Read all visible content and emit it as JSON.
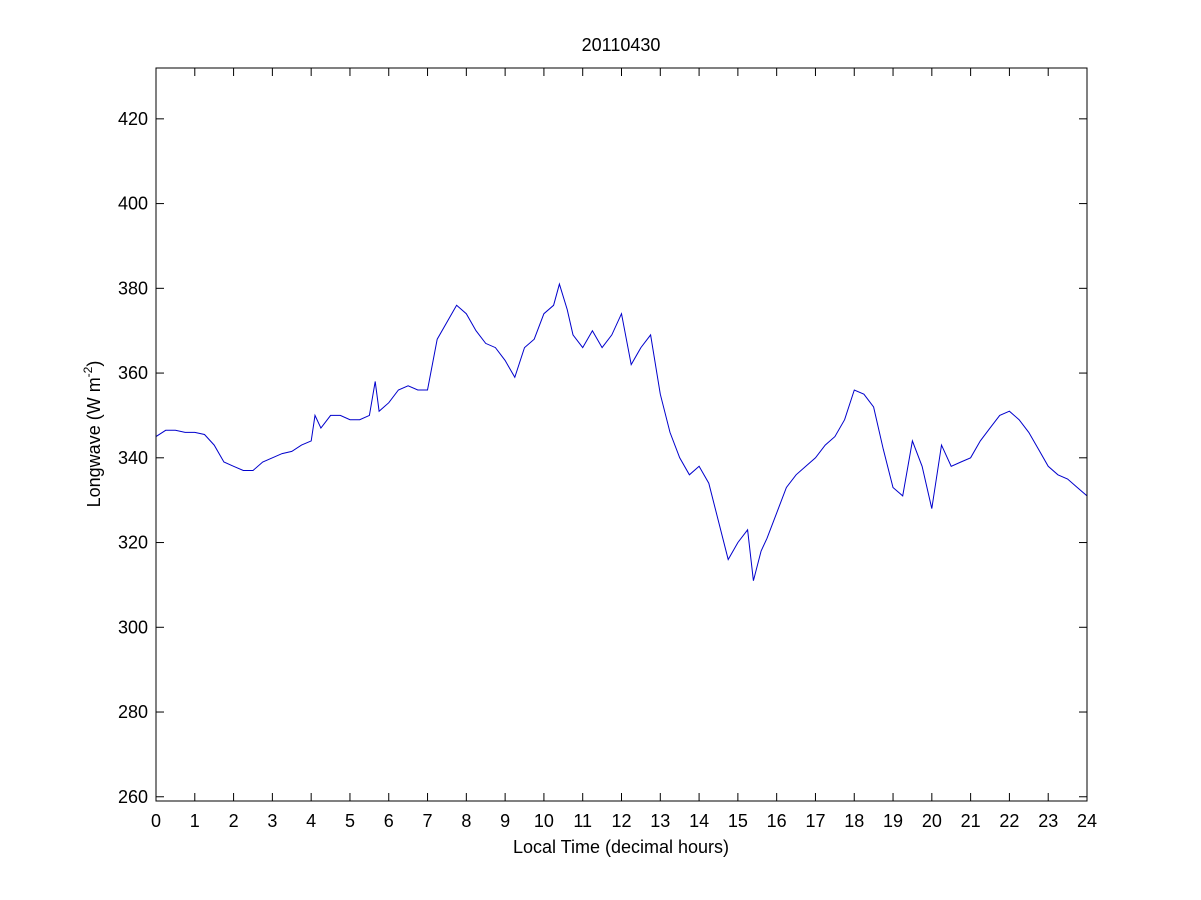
{
  "chart_data": {
    "type": "line",
    "title": "20110430",
    "xlabel": "Local Time (decimal hours)",
    "ylabel": "Longwave (W m",
    "ylabel_superscript": "-2",
    "ylabel_suffix": ")",
    "xlim": [
      0,
      24
    ],
    "ylim": [
      259,
      432
    ],
    "xticks": [
      0,
      1,
      2,
      3,
      4,
      5,
      6,
      7,
      8,
      9,
      10,
      11,
      12,
      13,
      14,
      15,
      16,
      17,
      18,
      19,
      20,
      21,
      22,
      23,
      24
    ],
    "yticks": [
      260,
      280,
      300,
      320,
      340,
      360,
      380,
      400,
      420
    ],
    "grid": false,
    "line_color": "#0000cc",
    "series": [
      {
        "x": [
          0,
          0.25,
          0.5,
          0.75,
          1,
          1.25,
          1.5,
          1.75,
          2,
          2.25,
          2.5,
          2.75,
          3,
          3.25,
          3.5,
          3.75,
          4,
          4.1,
          4.25,
          4.5,
          4.75,
          5,
          5.25,
          5.5,
          5.65,
          5.75,
          6,
          6.25,
          6.5,
          6.75,
          7,
          7.25,
          7.5,
          7.75,
          8,
          8.25,
          8.5,
          8.75,
          9,
          9.25,
          9.5,
          9.75,
          10,
          10.25,
          10.4,
          10.6,
          10.75,
          11,
          11.25,
          11.5,
          11.75,
          12,
          12.25,
          12.5,
          12.75,
          13,
          13.25,
          13.5,
          13.75,
          14,
          14.25,
          14.5,
          14.75,
          15,
          15.25,
          15.4,
          15.6,
          15.75,
          16,
          16.25,
          16.5,
          16.75,
          17,
          17.25,
          17.5,
          17.75,
          18,
          18.25,
          18.5,
          18.75,
          19,
          19.25,
          19.5,
          19.75,
          20,
          20.25,
          20.5,
          20.75,
          21,
          21.25,
          21.5,
          21.75,
          22,
          22.25,
          22.5,
          22.75,
          23,
          23.25,
          23.5,
          23.75,
          24
        ],
        "y": [
          345,
          346.5,
          346.5,
          346,
          346,
          345.5,
          343,
          339,
          338,
          337,
          337,
          339,
          340,
          341,
          341.5,
          343,
          344,
          350,
          347,
          350,
          350,
          349,
          349,
          350,
          358,
          351,
          353,
          356,
          357,
          356,
          356,
          368,
          372,
          376,
          374,
          370,
          367,
          366,
          363,
          359,
          366,
          368,
          374,
          376,
          381,
          375,
          369,
          366,
          370,
          366,
          369,
          374,
          362,
          366,
          369,
          355,
          346,
          340,
          336,
          338,
          334,
          325,
          316,
          320,
          323,
          311,
          318,
          321,
          327,
          333,
          336,
          338,
          340,
          343,
          345,
          349,
          356,
          355,
          352,
          342,
          333,
          331,
          344,
          338,
          328,
          343,
          338,
          339,
          340,
          344,
          347,
          350,
          351,
          349,
          346,
          342,
          338,
          336,
          335,
          333,
          331
        ]
      }
    ]
  }
}
